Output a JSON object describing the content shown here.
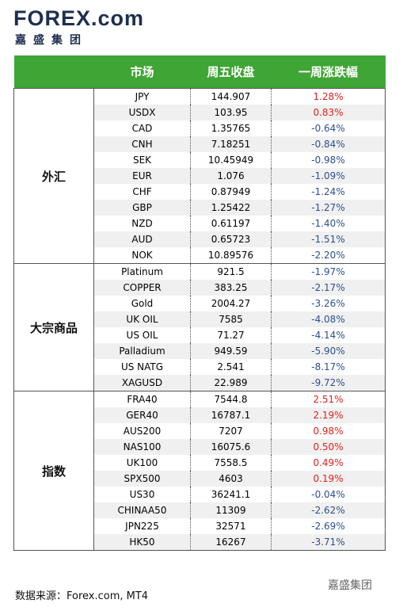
{
  "logo": {
    "brand": "FOREX.com",
    "subtitle": "嘉盛集团"
  },
  "table": {
    "header": [
      "市场",
      "周五收盘",
      "一周涨跌幅"
    ],
    "groups": [
      {
        "name": "外汇",
        "rows": [
          [
            "JPY",
            "144.907",
            "1.28%"
          ],
          [
            "USDX",
            "103.95",
            "0.83%"
          ],
          [
            "CAD",
            "1.35765",
            "-0.64%"
          ],
          [
            "CNH",
            "7.18251",
            "-0.84%"
          ],
          [
            "SEK",
            "10.45949",
            "-0.98%"
          ],
          [
            "EUR",
            "1.076",
            "-1.09%"
          ],
          [
            "CHF",
            "0.87949",
            "-1.24%"
          ],
          [
            "GBP",
            "1.25422",
            "-1.27%"
          ],
          [
            "NZD",
            "0.61197",
            "-1.40%"
          ],
          [
            "AUD",
            "0.65723",
            "-1.51%"
          ],
          [
            "NOK",
            "10.89576",
            "-2.20%"
          ]
        ]
      },
      {
        "name": "大宗商品",
        "rows": [
          [
            "Platinum",
            "921.5",
            "-1.97%"
          ],
          [
            "COPPER",
            "383.25",
            "-2.17%"
          ],
          [
            "Gold",
            "2004.27",
            "-3.26%"
          ],
          [
            "UK OIL",
            "7585",
            "-4.08%"
          ],
          [
            "US OIL",
            "71.27",
            "-4.14%"
          ],
          [
            "Palladium",
            "949.59",
            "-5.90%"
          ],
          [
            "US NATG",
            "2.541",
            "-8.17%"
          ],
          [
            "XAGUSD",
            "22.989",
            "-9.72%"
          ]
        ]
      },
      {
        "name": "指数",
        "rows": [
          [
            "FRA40",
            "7544.8",
            "2.51%"
          ],
          [
            "GER40",
            "16787.1",
            "2.19%"
          ],
          [
            "AUS200",
            "7207",
            "0.98%"
          ],
          [
            "NAS100",
            "16075.6",
            "0.50%"
          ],
          [
            "UK100",
            "7558.5",
            "0.49%"
          ],
          [
            "SPX500",
            "4603",
            "0.19%"
          ],
          [
            "US30",
            "36241.1",
            "-0.04%"
          ],
          [
            "CHINAA50",
            "11309",
            "-2.62%"
          ],
          [
            "JPN225",
            "32571",
            "-2.69%"
          ],
          [
            "HK50",
            "16267",
            "-3.71%"
          ]
        ]
      }
    ]
  },
  "footer": {
    "source": "数据来源：Forex.com, MT4",
    "watermark": "嘉盛集团"
  }
}
